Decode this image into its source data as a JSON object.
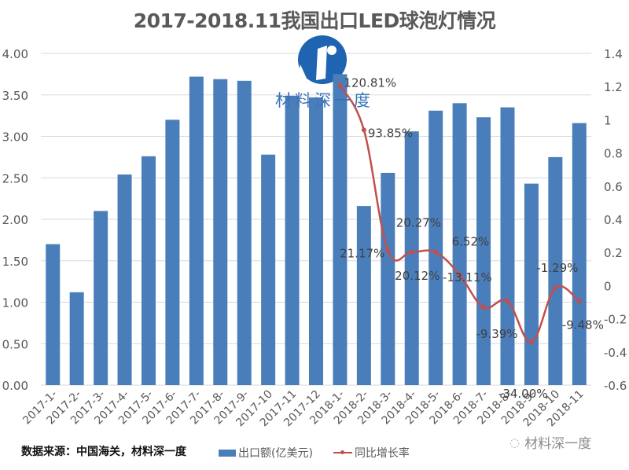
{
  "title": "2017-2018.11我国出口LED球泡灯情况",
  "source": "数据来源：中国海关，材料深一度",
  "watermark": {
    "text": "材料深一度",
    "icon": "wechat-icon"
  },
  "logo": {
    "text": "材料深一度",
    "icon": "logo-i-icon"
  },
  "legend": {
    "bar_label": "出口额(亿美元)",
    "line_label": "同比增长率"
  },
  "colors": {
    "bar": "#4a7ebb",
    "line": "#c0504d",
    "grid": "#d9d9d9",
    "axis_text": "#595959",
    "label_text": "#404040",
    "logo": "#1f64b0"
  },
  "chart_data": {
    "type": "bar",
    "title": "2017-2018.11我国出口LED球泡灯情况",
    "categories": [
      "2017-1-",
      "2017-2-",
      "2017-3-",
      "2017-4-",
      "2017-5-",
      "2017-6-",
      "2017-7-",
      "2017-8-",
      "2017-9-",
      "2017-10",
      "2017-11",
      "2017-12",
      "2018-1-",
      "2018-2-",
      "2018-3-",
      "2018-4-",
      "2018-5-",
      "2018-6-",
      "2018-7-",
      "2018-8-",
      "2018-9-",
      "2018-10",
      "2018-11"
    ],
    "series": [
      {
        "name": "出口额(亿美元)",
        "type": "bar",
        "axis": "left",
        "values": [
          1.7,
          1.12,
          2.1,
          2.54,
          2.76,
          3.2,
          3.72,
          3.69,
          3.67,
          2.78,
          3.49,
          3.47,
          3.75,
          2.16,
          2.56,
          3.06,
          3.31,
          3.4,
          3.23,
          3.35,
          2.43,
          2.75,
          3.16
        ]
      },
      {
        "name": "同比增长率",
        "type": "line",
        "axis": "right",
        "values": [
          null,
          null,
          null,
          null,
          null,
          null,
          null,
          null,
          null,
          null,
          null,
          null,
          1.2081,
          0.9385,
          0.2117,
          0.2027,
          0.2012,
          0.0652,
          -0.1311,
          -0.0939,
          -0.34,
          -0.0129,
          -0.0948
        ],
        "labels": [
          null,
          null,
          null,
          null,
          null,
          null,
          null,
          null,
          null,
          null,
          null,
          null,
          "120.81%",
          "93.85%",
          "21.17%",
          "20.27%",
          "20.12%",
          "6.52%",
          "-13.11%",
          "-9.39%",
          "-34.00%",
          "-1.29%",
          "-9.48%"
        ]
      }
    ],
    "y_left": {
      "min": 0,
      "max": 4,
      "ticks": [
        "0.00",
        "0.50",
        "1.00",
        "1.50",
        "2.00",
        "2.50",
        "3.00",
        "3.50",
        "4.00"
      ]
    },
    "y_right": {
      "min": -0.6,
      "max": 1.4,
      "ticks": [
        "-0.6",
        "-0.4",
        "-0.2",
        "0",
        "0.2",
        "0.4",
        "0.6",
        "0.8",
        "1",
        "1.2",
        "1.4"
      ]
    },
    "xlabel": "",
    "ylabel": "",
    "grid": true,
    "legend_position": "bottom"
  }
}
